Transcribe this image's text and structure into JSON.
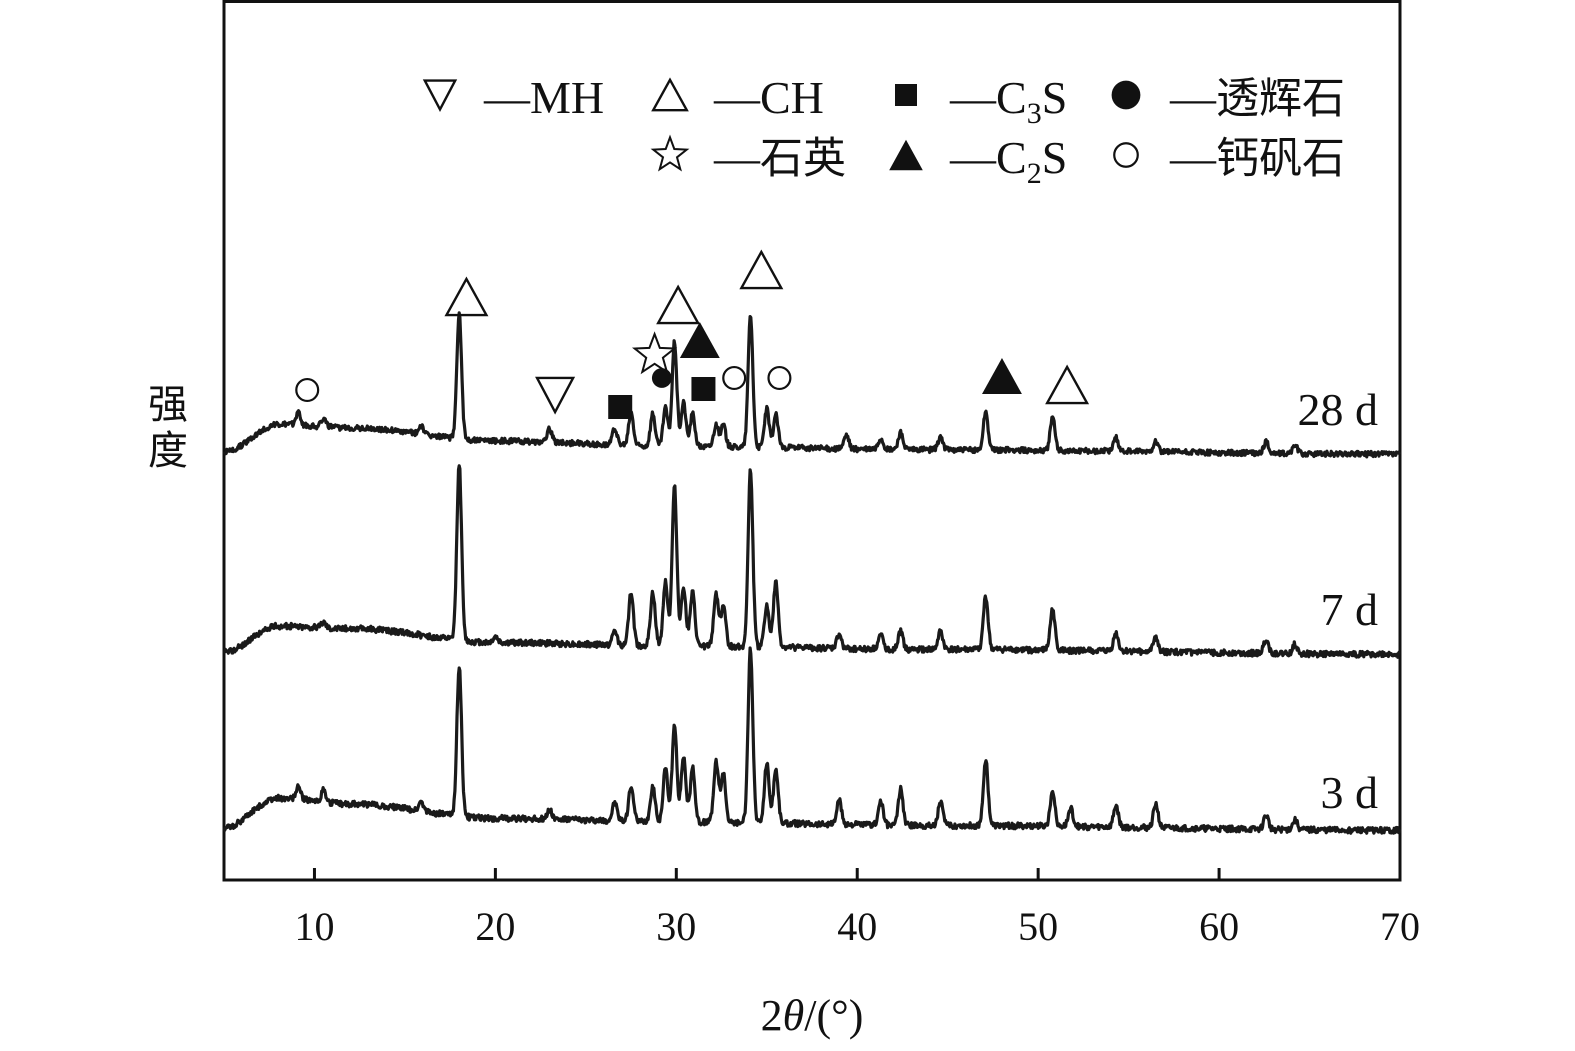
{
  "chart_data": {
    "type": "line",
    "title": "",
    "xlabel": "2θ/(°)",
    "ylabel": "强度",
    "xlim": [
      5,
      70
    ],
    "x_ticks": [
      "10",
      "20",
      "30",
      "40",
      "50",
      "60",
      "70"
    ],
    "grid": false,
    "legend_position": "top-right",
    "legend": [
      {
        "symbol": "▽",
        "dash": "—",
        "label": "MH"
      },
      {
        "symbol": "△",
        "dash": "—",
        "label": "CH"
      },
      {
        "symbol": "■",
        "dash": "—",
        "label": "C",
        "sub": "3",
        "tail": "S"
      },
      {
        "symbol": "●",
        "dash": "—",
        "label": "透辉石"
      },
      {
        "symbol": "☆",
        "dash": "—",
        "label": "石英"
      },
      {
        "symbol": "▲",
        "dash": "—",
        "label": "C",
        "sub": "2",
        "tail": "S"
      },
      {
        "symbol": "○",
        "dash": "—",
        "label": "钙矾石"
      }
    ],
    "series": [
      {
        "name": "28 d",
        "baseline": [
          [
            5,
            0
          ],
          [
            8,
            0.25
          ],
          [
            12,
            0.22
          ],
          [
            20,
            0.1
          ],
          [
            30,
            0.05
          ],
          [
            45,
            0.02
          ],
          [
            70,
            -0.02
          ]
        ],
        "peaks": [
          [
            9.1,
            0.12
          ],
          [
            10.5,
            0.08
          ],
          [
            15.9,
            0.08
          ],
          [
            18.0,
            1.15
          ],
          [
            23.0,
            0.12
          ],
          [
            26.6,
            0.15
          ],
          [
            27.5,
            0.3
          ],
          [
            28.7,
            0.3
          ],
          [
            29.4,
            0.35
          ],
          [
            29.9,
            0.95
          ],
          [
            30.4,
            0.4
          ],
          [
            30.9,
            0.3
          ],
          [
            32.2,
            0.2
          ],
          [
            32.6,
            0.2
          ],
          [
            34.1,
            1.2
          ],
          [
            35.0,
            0.35
          ],
          [
            35.5,
            0.3
          ],
          [
            39.4,
            0.12
          ],
          [
            41.3,
            0.1
          ],
          [
            42.4,
            0.15
          ],
          [
            44.6,
            0.12
          ],
          [
            47.1,
            0.35
          ],
          [
            50.8,
            0.3
          ],
          [
            54.3,
            0.12
          ],
          [
            56.5,
            0.1
          ],
          [
            62.6,
            0.1
          ],
          [
            64.2,
            0.08
          ]
        ],
        "markers": [
          {
            "symbol": "○",
            "x": 9.6
          },
          {
            "symbol": "△",
            "x": 18.4
          },
          {
            "symbol": "▽",
            "x": 23.3
          },
          {
            "symbol": "■",
            "x": 26.9
          },
          {
            "symbol": "☆",
            "x": 28.8
          },
          {
            "symbol": "●",
            "x": 29.2
          },
          {
            "symbol": "△",
            "x": 30.1
          },
          {
            "symbol": "▲",
            "x": 31.3
          },
          {
            "symbol": "■",
            "x": 31.5
          },
          {
            "symbol": "○",
            "x": 33.2
          },
          {
            "symbol": "△",
            "x": 34.7
          },
          {
            "symbol": "○",
            "x": 35.7
          },
          {
            "symbol": "▲",
            "x": 48.0
          },
          {
            "symbol": "△",
            "x": 51.6
          }
        ]
      },
      {
        "name": "7 d",
        "baseline": [
          [
            5,
            0
          ],
          [
            8,
            0.22
          ],
          [
            12,
            0.2
          ],
          [
            20,
            0.08
          ],
          [
            30,
            0.05
          ],
          [
            45,
            0.02
          ],
          [
            70,
            -0.02
          ]
        ],
        "peaks": [
          [
            10.5,
            0.05
          ],
          [
            18.0,
            1.5
          ],
          [
            20.0,
            0.05
          ],
          [
            26.6,
            0.12
          ],
          [
            27.5,
            0.45
          ],
          [
            28.7,
            0.45
          ],
          [
            29.4,
            0.55
          ],
          [
            29.9,
            1.35
          ],
          [
            30.4,
            0.5
          ],
          [
            30.9,
            0.45
          ],
          [
            32.2,
            0.45
          ],
          [
            32.6,
            0.35
          ],
          [
            34.1,
            1.5
          ],
          [
            35.0,
            0.35
          ],
          [
            35.5,
            0.55
          ],
          [
            39.0,
            0.12
          ],
          [
            41.3,
            0.12
          ],
          [
            42.4,
            0.15
          ],
          [
            44.6,
            0.15
          ],
          [
            47.1,
            0.45
          ],
          [
            50.8,
            0.35
          ],
          [
            54.3,
            0.15
          ],
          [
            56.5,
            0.12
          ],
          [
            62.6,
            0.12
          ],
          [
            64.2,
            0.08
          ]
        ],
        "markers": []
      },
      {
        "name": "3 d",
        "baseline": [
          [
            5,
            0
          ],
          [
            8,
            0.25
          ],
          [
            12,
            0.2
          ],
          [
            20,
            0.08
          ],
          [
            30,
            0.05
          ],
          [
            45,
            0.02
          ],
          [
            70,
            -0.02
          ]
        ],
        "peaks": [
          [
            9.1,
            0.1
          ],
          [
            10.5,
            0.1
          ],
          [
            15.9,
            0.08
          ],
          [
            18.0,
            1.25
          ],
          [
            23.0,
            0.08
          ],
          [
            26.6,
            0.15
          ],
          [
            27.5,
            0.3
          ],
          [
            28.7,
            0.3
          ],
          [
            29.4,
            0.45
          ],
          [
            29.9,
            0.8
          ],
          [
            30.4,
            0.55
          ],
          [
            30.9,
            0.45
          ],
          [
            32.2,
            0.5
          ],
          [
            32.6,
            0.4
          ],
          [
            34.1,
            1.45
          ],
          [
            35.0,
            0.5
          ],
          [
            35.5,
            0.45
          ],
          [
            39.0,
            0.2
          ],
          [
            41.3,
            0.2
          ],
          [
            42.4,
            0.3
          ],
          [
            44.6,
            0.2
          ],
          [
            47.1,
            0.55
          ],
          [
            50.8,
            0.3
          ],
          [
            51.8,
            0.15
          ],
          [
            54.3,
            0.18
          ],
          [
            56.5,
            0.2
          ],
          [
            62.6,
            0.12
          ],
          [
            64.2,
            0.08
          ]
        ],
        "markers": []
      }
    ]
  }
}
